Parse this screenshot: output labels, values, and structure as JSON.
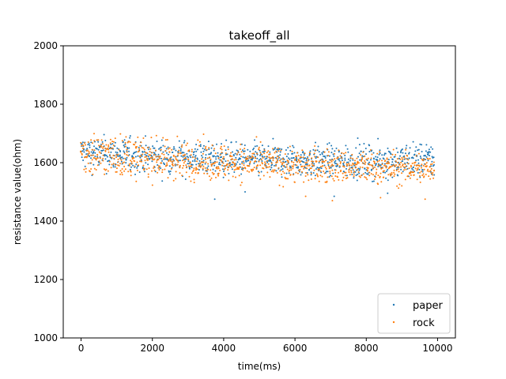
{
  "chart_data": {
    "type": "scatter",
    "title": "takeoff_all",
    "xlabel": "time(ms)",
    "ylabel": "resistance value(ohm)",
    "xlim": [
      -500,
      10500
    ],
    "ylim": [
      1000,
      2000
    ],
    "xticks": [
      0,
      2000,
      4000,
      6000,
      8000,
      10000
    ],
    "yticks": [
      1000,
      1200,
      1400,
      1600,
      1800,
      2000
    ],
    "grid": false,
    "legend_position": "lower-right",
    "series": [
      {
        "name": "paper",
        "color": "#1f77b4",
        "x_range": [
          0,
          9900
        ],
        "band": [
          [
            0,
            1548,
            1722
          ],
          [
            2000,
            1535,
            1705
          ],
          [
            4000,
            1530,
            1695
          ],
          [
            6000,
            1525,
            1688
          ],
          [
            8000,
            1522,
            1685
          ],
          [
            9900,
            1520,
            1700
          ]
        ],
        "outliers": [
          [
            3750,
            1475
          ],
          [
            4600,
            1500
          ],
          [
            7100,
            1485
          ],
          [
            8600,
            1495
          ]
        ]
      },
      {
        "name": "rock",
        "color": "#ff7f0e",
        "x_range": [
          0,
          9900
        ],
        "band": [
          [
            0,
            1518,
            1748
          ],
          [
            2000,
            1515,
            1712
          ],
          [
            4000,
            1508,
            1695
          ],
          [
            6000,
            1502,
            1680
          ],
          [
            8000,
            1500,
            1668
          ],
          [
            9900,
            1498,
            1660
          ]
        ],
        "outliers": [
          [
            7050,
            1470
          ],
          [
            9650,
            1475
          ],
          [
            6300,
            1485
          ],
          [
            8400,
            1480
          ],
          [
            2700,
            1690
          ]
        ]
      }
    ]
  }
}
